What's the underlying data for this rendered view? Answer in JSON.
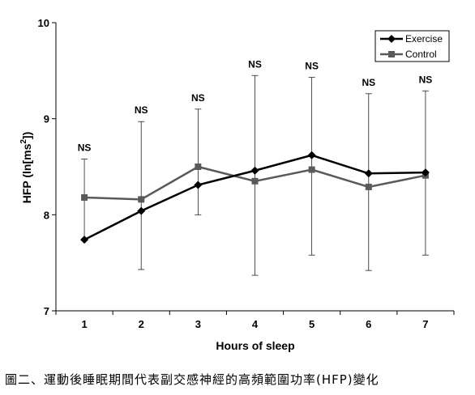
{
  "chart_data": {
    "type": "line",
    "xlabel": "Hours of sleep",
    "ylabel": "HFP (ln[ms",
    "ylabel_sup": "2",
    "ylabel_end": "])",
    "x": [
      1,
      2,
      3,
      4,
      5,
      6,
      7
    ],
    "x_tick_labels": [
      "1",
      "2",
      "3",
      "4",
      "5",
      "6",
      "7"
    ],
    "y_ticks": [
      7,
      8,
      9,
      10
    ],
    "y_tick_labels": [
      "7",
      "8",
      "9",
      "10"
    ],
    "ylim": [
      7,
      10
    ],
    "legend_position": "top-right",
    "series": [
      {
        "name": "Exercise",
        "color": "#000000",
        "marker": "diamond",
        "values": [
          7.74,
          8.04,
          8.31,
          8.46,
          8.62,
          8.43,
          8.44
        ]
      },
      {
        "name": "Control",
        "color": "#5a5a5a",
        "marker": "square",
        "values": [
          8.18,
          8.16,
          8.5,
          8.35,
          8.47,
          8.29,
          8.41
        ]
      }
    ],
    "error_bars": {
      "upper": [
        8.58,
        8.97,
        9.1,
        9.45,
        9.43,
        9.26,
        9.29
      ],
      "lower": [
        null,
        7.43,
        8.0,
        7.37,
        7.58,
        7.42,
        7.58
      ]
    },
    "annotations": [
      null,
      "NS",
      "NS",
      "NS",
      "NS",
      "NS",
      "NS"
    ],
    "annotation_first": "NS"
  },
  "caption": "圖二、運動後睡眠期間代表副交感神經的高頻範圍功率(HFP)變化"
}
